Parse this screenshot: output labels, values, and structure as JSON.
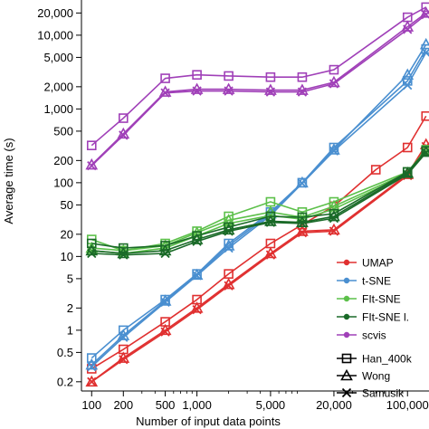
{
  "chart_data": {
    "type": "line",
    "xlabel": "Number of input data points",
    "ylabel": "Average time (s)",
    "xscale": "log",
    "yscale": "log",
    "xlim": [
      80,
      160000
    ],
    "ylim": [
      0.15,
      30000
    ],
    "grid": false,
    "legend_placement": "bottom-right",
    "x_ticks": [
      100,
      200,
      500,
      1000,
      5000,
      20000,
      100000
    ],
    "x_tick_labels": [
      "100",
      "200",
      "500",
      "1,000",
      "5,000",
      "20,000",
      "100,000"
    ],
    "y_ticks": [
      0.2,
      0.5,
      1,
      2,
      5,
      10,
      20,
      50,
      100,
      200,
      500,
      1000,
      2000,
      5000,
      10000,
      20000
    ],
    "y_tick_labels": [
      "0.2",
      "0.5",
      "1",
      "2",
      "5",
      "10",
      "20",
      "50",
      "100",
      "200",
      "500",
      "1,000",
      "2,000",
      "5,000",
      "10,000",
      "20,000"
    ],
    "method_legend": [
      {
        "name": "UMAP",
        "color": "#e03030"
      },
      {
        "name": "t-SNE",
        "color": "#4a8fd0"
      },
      {
        "name": "FIt-SNE",
        "color": "#5cc04a"
      },
      {
        "name": "FIt-SNE l.",
        "color": "#1a6a28"
      },
      {
        "name": "scvis",
        "color": "#a040b8"
      }
    ],
    "dataset_legend": [
      {
        "name": "Han_400k",
        "marker": "square"
      },
      {
        "name": "Wong",
        "marker": "triangle"
      },
      {
        "name": "Samusik",
        "marker": "cross"
      }
    ],
    "series": [
      {
        "method": "UMAP",
        "dataset": "Han_400k",
        "color": "#e03030",
        "marker": "square",
        "x": [
          100,
          200,
          500,
          1000,
          2000,
          5000,
          10000,
          20000,
          50000,
          100000,
          150000
        ],
        "y": [
          0.3,
          0.55,
          1.3,
          2.6,
          5.8,
          15,
          27,
          48,
          150,
          300,
          800
        ]
      },
      {
        "method": "UMAP",
        "dataset": "Wong",
        "color": "#e03030",
        "marker": "triangle",
        "x": [
          100,
          200,
          500,
          1000,
          2000,
          5000,
          10000,
          20000,
          100000,
          150000
        ],
        "y": [
          0.2,
          0.42,
          1.0,
          2.0,
          4.2,
          11,
          22,
          23,
          130,
          330
        ]
      },
      {
        "method": "UMAP",
        "dataset": "Samusik",
        "color": "#e03030",
        "marker": "cross",
        "x": [
          100,
          200,
          500,
          1000,
          2000,
          5000,
          10000,
          20000,
          100000,
          150000
        ],
        "y": [
          0.2,
          0.4,
          0.95,
          1.9,
          4.0,
          10.5,
          21,
          22,
          125,
          310
        ]
      },
      {
        "method": "t-SNE",
        "dataset": "Han_400k",
        "color": "#4a8fd0",
        "marker": "square",
        "x": [
          100,
          200,
          500,
          1000,
          2000,
          5000,
          10000,
          20000,
          100000,
          150000
        ],
        "y": [
          0.42,
          1.0,
          2.6,
          5.8,
          15,
          40,
          100,
          300,
          2400,
          6500
        ]
      },
      {
        "method": "t-SNE",
        "dataset": "Wong",
        "color": "#4a8fd0",
        "marker": "triangle",
        "x": [
          100,
          200,
          500,
          1000,
          2000,
          5000,
          10000,
          20000,
          100000,
          150000
        ],
        "y": [
          0.34,
          0.85,
          2.5,
          5.6,
          14,
          38,
          100,
          280,
          2900,
          7500
        ]
      },
      {
        "method": "t-SNE",
        "dataset": "Samusik",
        "color": "#4a8fd0",
        "marker": "cross",
        "x": [
          100,
          200,
          500,
          1000,
          2000,
          5000,
          10000,
          20000,
          100000,
          150000
        ],
        "y": [
          0.32,
          0.8,
          2.4,
          5.5,
          13,
          36,
          98,
          270,
          2100,
          5800
        ]
      },
      {
        "method": "FIt-SNE",
        "dataset": "Han_400k",
        "color": "#5cc04a",
        "marker": "square",
        "x": [
          100,
          200,
          500,
          1000,
          2000,
          5000,
          10000,
          20000,
          100000,
          150000
        ],
        "y": [
          17,
          12,
          15,
          22,
          35,
          55,
          40,
          55,
          140,
          280
        ]
      },
      {
        "method": "FIt-SNE",
        "dataset": "Wong",
        "color": "#5cc04a",
        "marker": "triangle",
        "x": [
          100,
          200,
          500,
          1000,
          2000,
          5000,
          10000,
          20000,
          100000,
          150000
        ],
        "y": [
          13,
          12,
          14,
          21,
          31,
          40,
          34,
          48,
          135,
          270
        ]
      },
      {
        "method": "FIt-SNE",
        "dataset": "Samusik",
        "color": "#5cc04a",
        "marker": "cross",
        "x": [
          100,
          200,
          500,
          1000,
          2000,
          5000,
          10000,
          20000,
          100000,
          150000
        ],
        "y": [
          12,
          11,
          13,
          19,
          28,
          36,
          32,
          44,
          130,
          265
        ]
      },
      {
        "method": "FIt-SNE l.",
        "dataset": "Han_400k",
        "color": "#1a6a28",
        "marker": "square",
        "x": [
          100,
          200,
          500,
          1000,
          2000,
          5000,
          10000,
          20000,
          100000,
          150000
        ],
        "y": [
          15,
          13,
          14,
          19,
          25,
          35,
          34,
          38,
          140,
          270
        ]
      },
      {
        "method": "FIt-SNE l.",
        "dataset": "Wong",
        "color": "#1a6a28",
        "marker": "triangle",
        "x": [
          100,
          200,
          500,
          1000,
          2000,
          5000,
          10000,
          20000,
          100000,
          150000
        ],
        "y": [
          12,
          11,
          12,
          17,
          23,
          30,
          29,
          35,
          135,
          260
        ]
      },
      {
        "method": "FIt-SNE l.",
        "dataset": "Samusik",
        "color": "#1a6a28",
        "marker": "cross",
        "x": [
          100,
          200,
          500,
          1000,
          2000,
          5000,
          10000,
          20000,
          100000,
          150000
        ],
        "y": [
          11,
          10.5,
          11,
          16,
          22,
          29,
          28,
          33,
          130,
          255
        ]
      },
      {
        "method": "scvis",
        "dataset": "Han_400k",
        "color": "#a040b8",
        "marker": "square",
        "x": [
          100,
          200,
          500,
          1000,
          2000,
          5000,
          10000,
          20000,
          100000,
          150000
        ],
        "y": [
          320,
          750,
          2600,
          2900,
          2800,
          2700,
          2700,
          3400,
          17500,
          24000
        ]
      },
      {
        "method": "scvis",
        "dataset": "Wong",
        "color": "#a040b8",
        "marker": "triangle",
        "x": [
          100,
          200,
          500,
          1000,
          2000,
          5000,
          10000,
          20000,
          100000,
          150000
        ],
        "y": [
          175,
          460,
          1700,
          1850,
          1850,
          1800,
          1800,
          2300,
          13000,
          20000
        ]
      },
      {
        "method": "scvis",
        "dataset": "Samusik",
        "color": "#a040b8",
        "marker": "cross",
        "x": [
          100,
          200,
          500,
          1000,
          2000,
          5000,
          10000,
          20000,
          100000,
          150000
        ],
        "y": [
          170,
          440,
          1650,
          1750,
          1750,
          1700,
          1700,
          2200,
          12000,
          19000
        ]
      }
    ]
  }
}
